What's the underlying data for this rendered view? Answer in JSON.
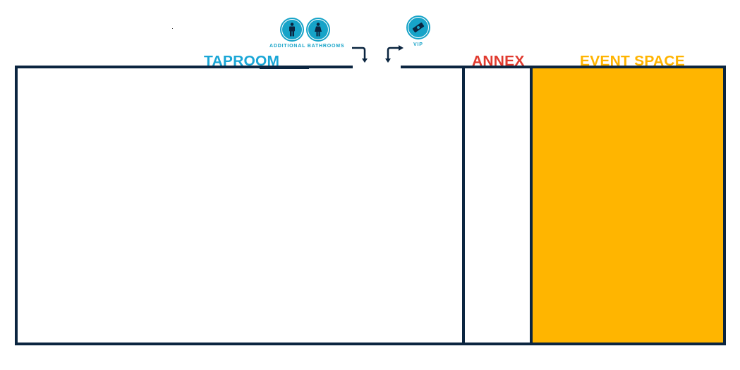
{
  "icons": {
    "mens_restroom": "man-icon",
    "womens_restroom": "woman-icon",
    "vip": "ticket-icon",
    "arrow_bathrooms": "bent-arrow-down-icon",
    "arrow_vip": "bent-arrow-down-icon"
  },
  "labels": {
    "additional_bathrooms": "ADDITIONAL BATHROOMS",
    "vip": "VIP",
    "taproom": "TAPROOM",
    "annex": "ANNEX",
    "event_space": "EVENT SPACE"
  },
  "colors": {
    "wall": "#0b2540",
    "taproom": "#1aa6d6",
    "annex": "#e03a2f",
    "event_space": "#ffb400",
    "event_fill": "#ffb500",
    "icon": "#16a3c8",
    "background": "#ffffff"
  }
}
